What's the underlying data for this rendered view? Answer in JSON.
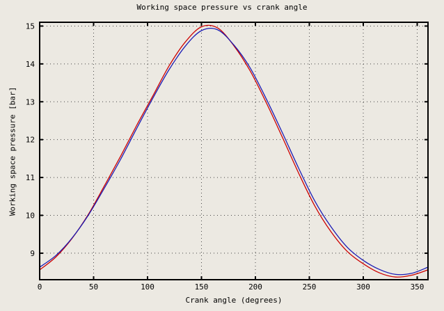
{
  "window": {
    "background_color": "#ece9e2",
    "frame_color": "#000000",
    "grid_color": "#444444"
  },
  "chart_data": {
    "type": "line",
    "title": "Working space pressure vs crank angle",
    "xlabel": "Crank angle (degrees)",
    "ylabel": "Working space pressure [bar]",
    "xlim": [
      0,
      360
    ],
    "ylim": [
      8.3,
      15.1
    ],
    "xticks": [
      0,
      50,
      100,
      150,
      200,
      250,
      300,
      350
    ],
    "yticks": [
      9,
      10,
      11,
      12,
      13,
      14,
      15
    ],
    "grid": "dotted",
    "legend_position": "none",
    "x": [
      0,
      15,
      30,
      45,
      60,
      75,
      90,
      105,
      120,
      135,
      150,
      165,
      180,
      195,
      210,
      225,
      240,
      255,
      270,
      285,
      300,
      315,
      330,
      345,
      360
    ],
    "series": [
      {
        "name": "pressure-curve-red",
        "color": "#cc0000",
        "values": [
          8.56,
          8.9,
          9.39,
          10.02,
          10.78,
          11.56,
          12.38,
          13.16,
          13.95,
          14.58,
          14.98,
          14.95,
          14.48,
          13.82,
          12.98,
          12.06,
          11.12,
          10.25,
          9.57,
          9.05,
          8.72,
          8.48,
          8.37,
          8.42,
          8.56
        ]
      },
      {
        "name": "pressure-curve-blue",
        "color": "#1b1bb4",
        "values": [
          8.63,
          8.94,
          9.4,
          10.0,
          10.72,
          11.48,
          12.3,
          13.1,
          13.85,
          14.47,
          14.88,
          14.9,
          14.5,
          13.9,
          13.08,
          12.18,
          11.25,
          10.38,
          9.7,
          9.16,
          8.81,
          8.57,
          8.44,
          8.47,
          8.63
        ]
      }
    ]
  }
}
